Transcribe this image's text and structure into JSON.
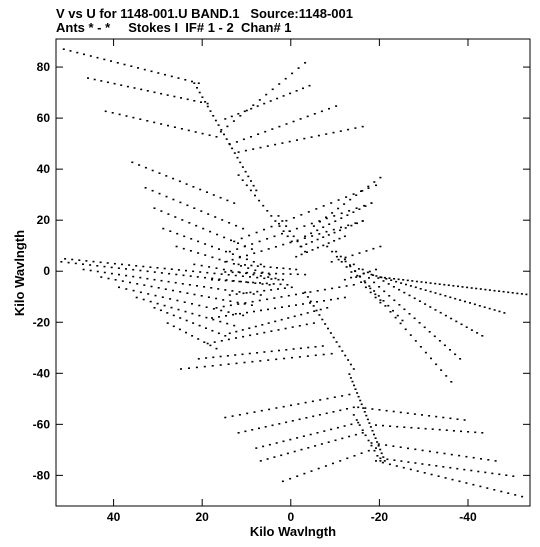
{
  "chart_data": {
    "type": "scatter",
    "title_line1": "V vs U for 1148-001.U BAND.1   Source:1148-001",
    "title_line2": "Ants * - *     Stokes I  IF# 1 - 2  Chan# 1",
    "xlabel": "Kilo Wavlngth",
    "ylabel": "Kilo Wavlngth",
    "xlim": [
      53,
      -54
    ],
    "ylim": [
      -92,
      91
    ],
    "xticks": [
      40,
      20,
      0,
      -20,
      -40
    ],
    "yticks": [
      80,
      60,
      40,
      20,
      0,
      -20,
      -40,
      -60,
      -80
    ],
    "grid": false,
    "marker_color": "#000000",
    "tracks": [
      {
        "from": [
          53,
          88
        ],
        "to": [
          21,
          74
        ],
        "n": 22
      },
      {
        "from": [
          46,
          76
        ],
        "to": [
          19,
          66
        ],
        "n": 19
      },
      {
        "from": [
          42,
          63
        ],
        "to": [
          17,
          53
        ],
        "n": 17
      },
      {
        "from": [
          36,
          43
        ],
        "to": [
          13,
          27
        ],
        "n": 16
      },
      {
        "from": [
          33,
          33
        ],
        "to": [
          11,
          17
        ],
        "n": 15
      },
      {
        "from": [
          31,
          25
        ],
        "to": [
          9,
          9
        ],
        "n": 15
      },
      {
        "from": [
          29,
          17
        ],
        "to": [
          7,
          3
        ],
        "n": 15
      },
      {
        "from": [
          26,
          10
        ],
        "to": [
          5,
          -1
        ],
        "n": 14
      },
      {
        "from": [
          22,
          3
        ],
        "to": [
          2,
          -3
        ],
        "n": 13
      },
      {
        "from": [
          18,
          -3
        ],
        "to": [
          1,
          -5
        ],
        "n": 12
      },
      {
        "from": [
          14,
          -9
        ],
        "to": [
          0,
          -6
        ],
        "n": 10
      },
      {
        "from": [
          56,
          6
        ],
        "to": [
          3,
          -3
        ],
        "n": 34
      },
      {
        "from": [
          52,
          4
        ],
        "to": [
          5,
          -5
        ],
        "n": 30
      },
      {
        "from": [
          47,
          1
        ],
        "to": [
          7,
          -9
        ],
        "n": 26
      },
      {
        "from": [
          43,
          -2
        ],
        "to": [
          9,
          -13
        ],
        "n": 22
      },
      {
        "from": [
          39,
          -6
        ],
        "to": [
          11,
          -17
        ],
        "n": 18
      },
      {
        "from": [
          35,
          -10
        ],
        "to": [
          13,
          -21
        ],
        "n": 15
      },
      {
        "from": [
          31,
          -14
        ],
        "to": [
          15,
          -25
        ],
        "n": 12
      },
      {
        "from": [
          28,
          -20
        ],
        "to": [
          17,
          -30
        ],
        "n": 9
      },
      {
        "from": [
          12,
          3
        ],
        "to": [
          -1,
          1
        ],
        "n": 10
      },
      {
        "from": [
          15,
          0
        ],
        "to": [
          -3,
          -1
        ],
        "n": 12
      },
      {
        "from": [
          -20,
          -2
        ],
        "to": [
          -54,
          -9
        ],
        "n": 34
      },
      {
        "from": [
          -18,
          -1
        ],
        "to": [
          -48,
          -16
        ],
        "n": 28
      },
      {
        "from": [
          -16,
          1
        ],
        "to": [
          -43,
          -25
        ],
        "n": 24
      },
      {
        "from": [
          -14,
          3
        ],
        "to": [
          -38,
          -34
        ],
        "n": 22
      },
      {
        "from": [
          -12,
          5
        ],
        "to": [
          -36,
          -43
        ],
        "n": 22
      },
      {
        "from": [
          -10,
          8
        ],
        "to": [
          -25,
          -19
        ],
        "n": 15
      },
      {
        "from": [
          -8,
          10
        ],
        "to": [
          -20,
          -12
        ],
        "n": 12
      },
      {
        "from": [
          -5,
          18
        ],
        "to": [
          -20,
          37
        ],
        "n": 12
      },
      {
        "from": [
          -3,
          14
        ],
        "to": [
          -18,
          27
        ],
        "n": 12
      },
      {
        "from": [
          -2,
          10
        ],
        "to": [
          -16,
          20
        ],
        "n": 12
      },
      {
        "from": [
          -1,
          6
        ],
        "to": [
          -12,
          14
        ],
        "n": 10
      },
      {
        "from": [
          -9,
          4
        ],
        "to": [
          -20,
          10
        ],
        "n": 8
      },
      {
        "from": [
          -12,
          -3
        ],
        "to": [
          -19,
          1
        ],
        "n": 6
      },
      {
        "from": [
          13,
          12
        ],
        "to": [
          -19,
          34
        ],
        "n": 20
      },
      {
        "from": [
          14,
          8
        ],
        "to": [
          -18,
          27
        ],
        "n": 20
      },
      {
        "from": [
          15,
          4
        ],
        "to": [
          -16,
          20
        ],
        "n": 20
      },
      {
        "from": [
          18,
          -18
        ],
        "to": [
          -12,
          -10
        ],
        "n": 20
      },
      {
        "from": [
          17,
          -14
        ],
        "to": [
          -14,
          -5
        ],
        "n": 20
      },
      {
        "from": [
          14,
          -24
        ],
        "to": [
          -8,
          -14
        ],
        "n": 16
      },
      {
        "from": [
          19,
          -28
        ],
        "to": [
          -5,
          -20
        ],
        "n": 16
      },
      {
        "from": [
          21,
          -34
        ],
        "to": [
          -7,
          -29
        ],
        "n": 18
      },
      {
        "from": [
          25,
          -38
        ],
        "to": [
          -9,
          -32
        ],
        "n": 20
      },
      {
        "from": [
          16,
          55
        ],
        "to": [
          -3,
          82
        ],
        "n": 14
      },
      {
        "from": [
          15,
          60
        ],
        "to": [
          -4,
          73
        ],
        "n": 14
      },
      {
        "from": [
          14,
          50
        ],
        "to": [
          -10,
          65
        ],
        "n": 16
      },
      {
        "from": [
          12,
          47
        ],
        "to": [
          -16,
          57
        ],
        "n": 18
      },
      {
        "from": [
          22,
          74
        ],
        "to": [
          8,
          32
        ],
        "n": 24
      },
      {
        "from": [
          12,
          38
        ],
        "to": [
          0,
          12
        ],
        "n": 14
      },
      {
        "from": [
          3,
          22
        ],
        "to": [
          -3,
          8
        ],
        "n": 8
      },
      {
        "from": [
          -3,
          -8
        ],
        "to": [
          -14,
          -38
        ],
        "n": 18
      },
      {
        "from": [
          -13,
          -40
        ],
        "to": [
          -21,
          -74
        ],
        "n": 24
      },
      {
        "from": [
          -14,
          -56
        ],
        "to": [
          -20,
          -74
        ],
        "n": 10
      },
      {
        "from": [
          15,
          -57
        ],
        "to": [
          -13,
          -48
        ],
        "n": 18
      },
      {
        "from": [
          12,
          -63
        ],
        "to": [
          -14,
          -53
        ],
        "n": 18
      },
      {
        "from": [
          8,
          -69
        ],
        "to": [
          -15,
          -59
        ],
        "n": 16
      },
      {
        "from": [
          7,
          -74
        ],
        "to": [
          -16,
          -63
        ],
        "n": 16
      },
      {
        "from": [
          2,
          -82
        ],
        "to": [
          -19,
          -69
        ],
        "n": 14
      },
      {
        "from": [
          -19,
          -60
        ],
        "to": [
          -43,
          -63
        ],
        "n": 16
      },
      {
        "from": [
          -18,
          -67
        ],
        "to": [
          -46,
          -74
        ],
        "n": 18
      },
      {
        "from": [
          -20,
          -73
        ],
        "to": [
          -50,
          -80
        ],
        "n": 20
      },
      {
        "from": [
          -19,
          -74
        ],
        "to": [
          -52,
          -88
        ],
        "n": 22
      },
      {
        "from": [
          -15,
          -53
        ],
        "to": [
          -39,
          -58
        ],
        "n": 16
      }
    ]
  }
}
